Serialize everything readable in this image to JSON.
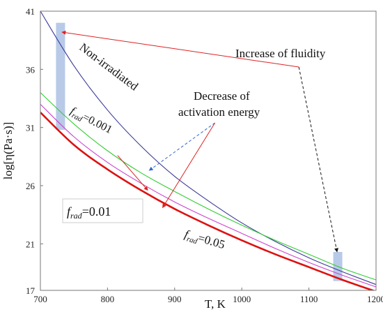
{
  "chart_data": {
    "type": "line",
    "title": "",
    "xlabel": "T, K",
    "ylabel": "log[η(Pa·s)]",
    "xlim": [
      700,
      1200
    ],
    "ylim": [
      17,
      41
    ],
    "xticks": [
      "700",
      "800",
      "900",
      "1000",
      "1100",
      "1200"
    ],
    "yticks": [
      "17",
      "21",
      "26",
      "31",
      "36",
      "41"
    ],
    "grid": false,
    "series": [
      {
        "name": "Non-irradiated",
        "color": "#3a3a9a",
        "x": [
          700,
          750,
          800,
          850,
          900,
          950,
          1000,
          1050,
          1100,
          1150,
          1200
        ],
        "y": [
          41,
          36.3,
          32.5,
          29.4,
          26.8,
          24.7,
          22.8,
          21.2,
          19.8,
          18.6,
          17.5
        ]
      },
      {
        "name": "f_rad=0.001",
        "color": "#33cc33",
        "x": [
          700,
          750,
          800,
          850,
          900,
          950,
          1000,
          1050,
          1100,
          1150,
          1200
        ],
        "y": [
          34,
          31.3,
          29,
          27.1,
          25.5,
          24,
          22.6,
          21.3,
          20.1,
          18.9,
          17.9
        ]
      },
      {
        "name": "f_rad=0.01",
        "color": "#cc44cc",
        "x": [
          700,
          750,
          800,
          850,
          900,
          950,
          1000,
          1050,
          1100,
          1150,
          1200
        ],
        "y": [
          33,
          30.2,
          28,
          26.2,
          24.6,
          23.2,
          21.9,
          20.6,
          19.4,
          18.3,
          17.3
        ]
      },
      {
        "name": "f_rad=0.05",
        "color": "#dd1111",
        "x": [
          700,
          750,
          800,
          850,
          900,
          950,
          1000,
          1050,
          1100,
          1150,
          1200
        ],
        "y": [
          32.3,
          29.5,
          27.4,
          25.6,
          24,
          22.6,
          21.3,
          20.1,
          19,
          17.9,
          16.9
        ]
      }
    ],
    "bands": [
      {
        "x": 730,
        "y_from": 30.8,
        "y_to": 40,
        "color": "#b0c4e6"
      },
      {
        "x": 1143,
        "y_from": 17.8,
        "y_to": 20.3,
        "color": "#b0c4e6"
      }
    ],
    "annotations": {
      "fluidity": "Increase of fluidity",
      "activation_line1": "Decrease of",
      "activation_line2": "activation energy",
      "nonirradiated": "Non-irradiated",
      "f": "f",
      "rad": "rad",
      "frad_001": "=0.001",
      "frad_01": "=0.01",
      "frad_05": "=0.05"
    },
    "arrows": [
      {
        "from": [
          1085,
          36.2
        ],
        "to": [
          732,
          39.2
        ],
        "color": "#dd2222",
        "style": "solid"
      },
      {
        "from": [
          1085,
          36.2
        ],
        "to": [
          1142,
          20.3
        ],
        "color": "#111111",
        "style": "dashed"
      },
      {
        "from": [
          960,
          31.4
        ],
        "to": [
          862,
          27.3
        ],
        "color": "#3366cc",
        "style": "dashed"
      },
      {
        "from": [
          960,
          31.4
        ],
        "to": [
          882,
          24.1
        ],
        "color": "#dd2222",
        "style": "solid"
      },
      {
        "from": [
          815,
          28.6
        ],
        "to": [
          860,
          25.6
        ],
        "color": "#dd2222",
        "style": "solid"
      }
    ]
  }
}
